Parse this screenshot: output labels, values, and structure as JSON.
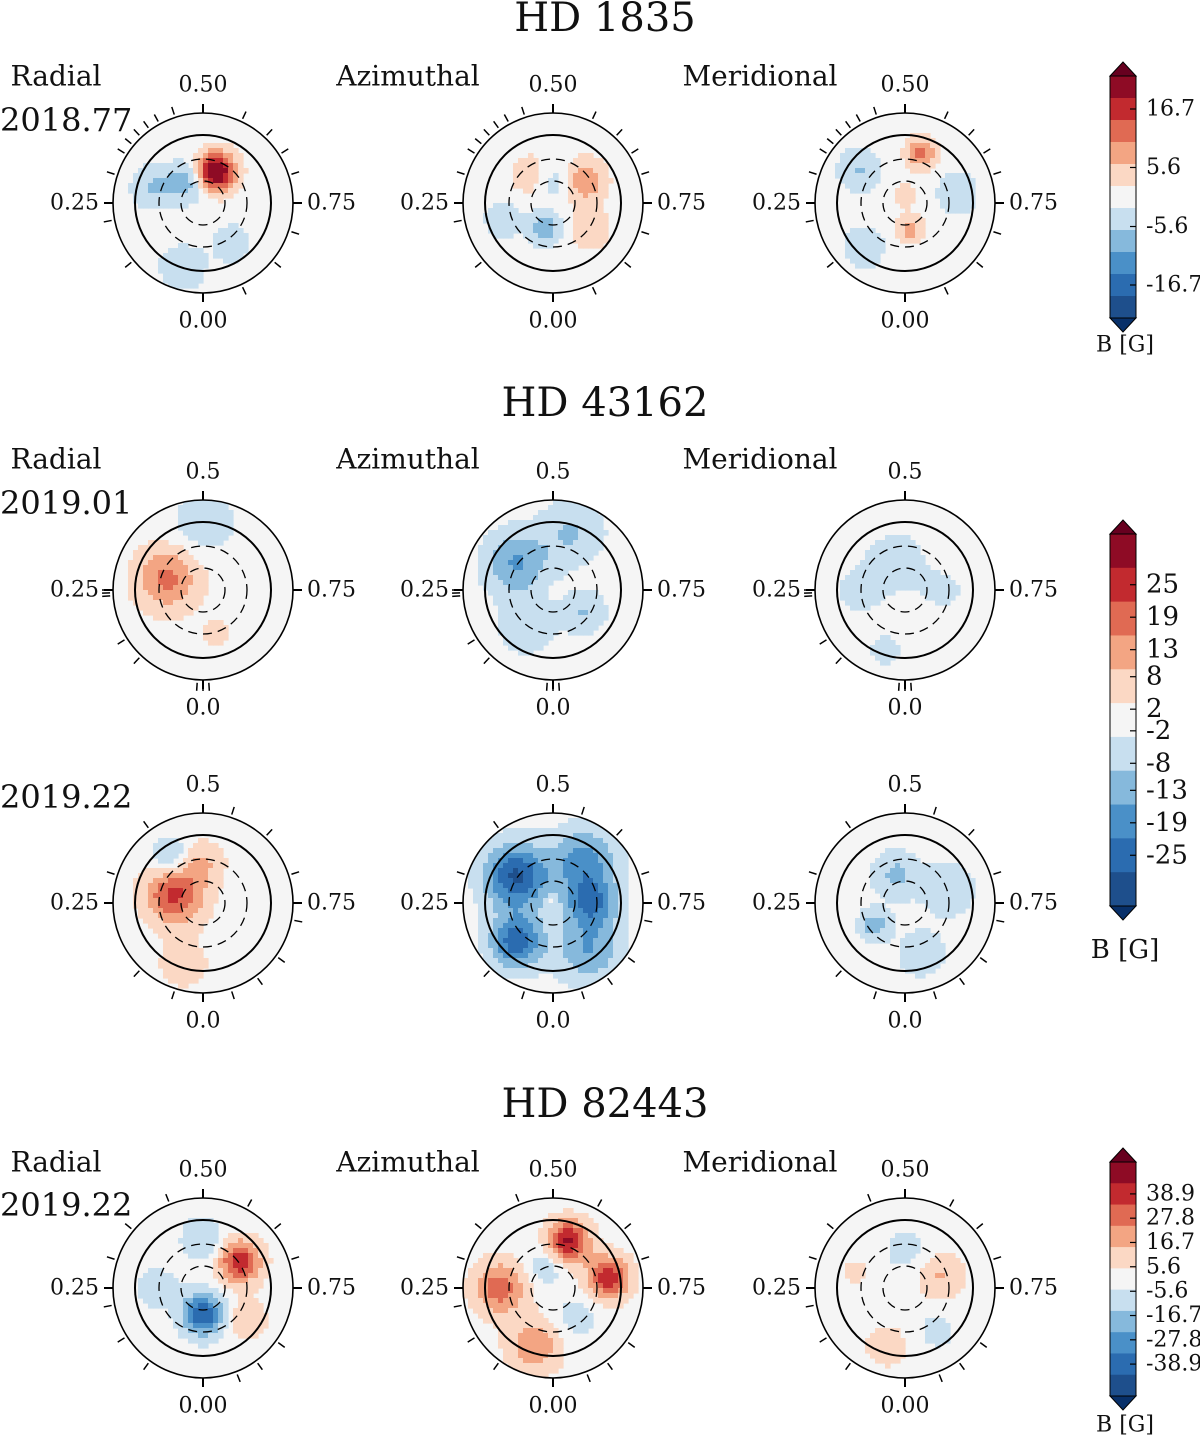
{
  "chart_data": [
    {
      "type": "polar_map",
      "title": "HD 1835",
      "phase_labels": {
        "top": "0.50",
        "left": "0.25",
        "right": "0.75",
        "bottom": "0.00"
      },
      "components": [
        "Radial",
        "Azimuthal",
        "Meridional"
      ],
      "colorbar": {
        "label": "B [G]",
        "ticks": [
          "16.7",
          "5.6",
          "-5.6",
          "-16.7"
        ],
        "levels": 11
      },
      "epochs": [
        {
          "epoch": "2018.77",
          "obs_phases": [
            0.62,
            0.66,
            0.7,
            0.8,
            0.86,
            0.93,
            0.14,
            0.22,
            0.3,
            0.34,
            0.36,
            0.38,
            0.4,
            0.42,
            0.45,
            0.57
          ],
          "maps": [
            {
              "component": "Radial",
              "spots": [
                {
                  "lon": 0.56,
                  "lat": 45,
                  "value": 24,
                  "size": 0.18
                },
                {
                  "lon": 0.4,
                  "lat": 55,
                  "value": -9,
                  "size": 0.18
                },
                {
                  "lon": 0.3,
                  "lat": 20,
                  "value": -6,
                  "size": 0.2
                },
                {
                  "lon": 0.05,
                  "lat": 0,
                  "value": -5,
                  "size": 0.22
                },
                {
                  "lon": 0.9,
                  "lat": 25,
                  "value": -4,
                  "size": 0.2
                }
              ]
            },
            {
              "component": "Azimuthal",
              "spots": [
                {
                  "lon": 0.65,
                  "lat": 40,
                  "value": 10,
                  "size": 0.2
                },
                {
                  "lon": 0.4,
                  "lat": 45,
                  "value": 6,
                  "size": 0.2
                },
                {
                  "lon": 0.05,
                  "lat": 55,
                  "value": -9,
                  "size": 0.15
                },
                {
                  "lon": 0.5,
                  "lat": 60,
                  "value": -6,
                  "size": 0.2
                },
                {
                  "lon": 0.85,
                  "lat": 30,
                  "value": 5,
                  "size": 0.2
                },
                {
                  "lon": 0.2,
                  "lat": 20,
                  "value": -4,
                  "size": 0.2
                }
              ]
            },
            {
              "component": "Meridional",
              "spots": [
                {
                  "lon": 0.55,
                  "lat": 20,
                  "value": 11,
                  "size": 0.14
                },
                {
                  "lon": 0.97,
                  "lat": 55,
                  "value": 8,
                  "size": 0.12
                },
                {
                  "lon": 0.35,
                  "lat": 15,
                  "value": -6,
                  "size": 0.2
                },
                {
                  "lon": 0.72,
                  "lat": 20,
                  "value": -5,
                  "size": 0.2
                },
                {
                  "lon": 0.12,
                  "lat": 10,
                  "value": -5,
                  "size": 0.2
                },
                {
                  "lon": 0.5,
                  "lat": 80,
                  "value": 3,
                  "size": 0.15
                }
              ]
            }
          ]
        }
      ]
    },
    {
      "type": "polar_map",
      "title": "HD 43162",
      "phase_labels": {
        "top": "0.5",
        "left": "0.25",
        "right": "0.75",
        "bottom": "0.0"
      },
      "components": [
        "Radial",
        "Azimuthal",
        "Meridional"
      ],
      "colorbar": {
        "label": "B [G]",
        "ticks": [
          "25",
          "19",
          "13",
          "8",
          "2",
          "-2",
          "-8",
          "-13",
          "-19",
          "-25"
        ],
        "levels": 11
      },
      "epochs": [
        {
          "epoch": "2019.01",
          "obs_phases": [
            0.24,
            0.245,
            0.25,
            0.12,
            0.16,
            0.99,
            0.0,
            0.01
          ],
          "maps": [
            {
              "component": "Radial",
              "spots": [
                {
                  "lon": 0.3,
                  "lat": 40,
                  "value": 16,
                  "size": 0.3
                },
                {
                  "lon": 0.5,
                  "lat": 0,
                  "value": -7,
                  "size": 0.3
                },
                {
                  "lon": 0.95,
                  "lat": 30,
                  "value": 4,
                  "size": 0.2
                }
              ]
            },
            {
              "component": "Azimuthal",
              "spots": [
                {
                  "lon": 0.35,
                  "lat": 30,
                  "value": -15,
                  "size": 0.3
                },
                {
                  "lon": 0.55,
                  "lat": 10,
                  "value": -9,
                  "size": 0.3
                },
                {
                  "lon": 0.85,
                  "lat": 40,
                  "value": -9,
                  "size": 0.2
                },
                {
                  "lon": 0.1,
                  "lat": 30,
                  "value": -8,
                  "size": 0.25
                },
                {
                  "lon": 0.5,
                  "lat": 89,
                  "value": 6,
                  "size": 0.05
                }
              ]
            },
            {
              "component": "Meridional",
              "spots": [
                {
                  "lon": 0.45,
                  "lat": 50,
                  "value": -8,
                  "size": 0.25
                },
                {
                  "lon": 0.25,
                  "lat": 30,
                  "value": -5,
                  "size": 0.25
                },
                {
                  "lon": 0.05,
                  "lat": 5,
                  "value": -6,
                  "size": 0.15
                },
                {
                  "lon": 0.75,
                  "lat": 40,
                  "value": -4,
                  "size": 0.25
                }
              ]
            }
          ]
        },
        {
          "epoch": "2019.22",
          "obs_phases": [
            0.55,
            0.62,
            0.7,
            0.78,
            0.85,
            0.9,
            0.95,
            0.05,
            0.12,
            0.3,
            0.4
          ],
          "maps": [
            {
              "component": "Radial",
              "spots": [
                {
                  "lon": 0.3,
                  "lat": 50,
                  "value": 22,
                  "size": 0.28
                },
                {
                  "lon": 0.4,
                  "lat": 15,
                  "value": -12,
                  "size": 0.18
                },
                {
                  "lon": 0.05,
                  "lat": 5,
                  "value": 6,
                  "size": 0.25
                },
                {
                  "lon": 0.5,
                  "lat": 35,
                  "value": 8,
                  "size": 0.2
                }
              ]
            },
            {
              "component": "Azimuthal",
              "spots": [
                {
                  "lon": 0.35,
                  "lat": 30,
                  "value": -27,
                  "size": 0.3
                },
                {
                  "lon": 0.12,
                  "lat": 20,
                  "value": -24,
                  "size": 0.25
                },
                {
                  "lon": 0.75,
                  "lat": 40,
                  "value": -20,
                  "size": 0.25
                },
                {
                  "lon": 0.6,
                  "lat": 20,
                  "value": -17,
                  "size": 0.3
                },
                {
                  "lon": 0.9,
                  "lat": 10,
                  "value": -14,
                  "size": 0.3
                },
                {
                  "lon": 0.5,
                  "lat": 89,
                  "value": 8,
                  "size": 0.05
                }
              ]
            },
            {
              "component": "Meridional",
              "spots": [
                {
                  "lon": 0.45,
                  "lat": 50,
                  "value": -10,
                  "size": 0.22
                },
                {
                  "lon": 0.15,
                  "lat": 40,
                  "value": -12,
                  "size": 0.15
                },
                {
                  "lon": 0.7,
                  "lat": 30,
                  "value": -8,
                  "size": 0.25
                },
                {
                  "lon": 0.95,
                  "lat": 20,
                  "value": -6,
                  "size": 0.25
                }
              ]
            }
          ]
        }
      ]
    },
    {
      "type": "polar_map",
      "title": "HD 82443",
      "phase_labels": {
        "top": "0.50",
        "left": "0.25",
        "right": "0.75",
        "bottom": "0.00"
      },
      "components": [
        "Radial",
        "Azimuthal",
        "Meridional"
      ],
      "colorbar": {
        "label": "B [G]",
        "ticks": [
          "38.9",
          "27.8",
          "16.7",
          "5.6",
          "-5.6",
          "-16.7",
          "-27.8",
          "-38.9"
        ],
        "levels": 11
      },
      "epochs": [
        {
          "epoch": "2019.22",
          "obs_phases": [
            0.58,
            0.64,
            0.7,
            0.85,
            0.9,
            0.94,
            0.1,
            0.16,
            0.22,
            0.3,
            0.36,
            0.44
          ],
          "maps": [
            {
              "component": "Radial",
              "spots": [
                {
                  "lon": 0.65,
                  "lat": 30,
                  "value": 38,
                  "size": 0.2
                },
                {
                  "lon": 0.0,
                  "lat": 55,
                  "value": -40,
                  "size": 0.2
                },
                {
                  "lon": 0.5,
                  "lat": 25,
                  "value": -14,
                  "size": 0.2
                },
                {
                  "lon": 0.25,
                  "lat": 30,
                  "value": -10,
                  "size": 0.2
                },
                {
                  "lon": 0.85,
                  "lat": 20,
                  "value": 12,
                  "size": 0.2
                }
              ]
            },
            {
              "component": "Azimuthal",
              "spots": [
                {
                  "lon": 0.55,
                  "lat": 25,
                  "value": 42,
                  "size": 0.2
                },
                {
                  "lon": 0.72,
                  "lat": 15,
                  "value": 38,
                  "size": 0.2
                },
                {
                  "lon": 0.25,
                  "lat": 20,
                  "value": 28,
                  "size": 0.25
                },
                {
                  "lon": 0.05,
                  "lat": 10,
                  "value": 22,
                  "size": 0.25
                },
                {
                  "lon": 0.45,
                  "lat": 60,
                  "value": -12,
                  "size": 0.18
                },
                {
                  "lon": 0.9,
                  "lat": 40,
                  "value": -10,
                  "size": 0.2
                }
              ]
            },
            {
              "component": "Meridional",
              "spots": [
                {
                  "lon": 0.7,
                  "lat": 40,
                  "value": 14,
                  "size": 0.22
                },
                {
                  "lon": 0.5,
                  "lat": 40,
                  "value": -10,
                  "size": 0.18
                },
                {
                  "lon": 0.05,
                  "lat": 10,
                  "value": 8,
                  "size": 0.25
                },
                {
                  "lon": 0.9,
                  "lat": 20,
                  "value": -8,
                  "size": 0.2
                },
                {
                  "lon": 0.3,
                  "lat": 20,
                  "value": 6,
                  "size": 0.2
                }
              ]
            }
          ]
        }
      ]
    }
  ]
}
